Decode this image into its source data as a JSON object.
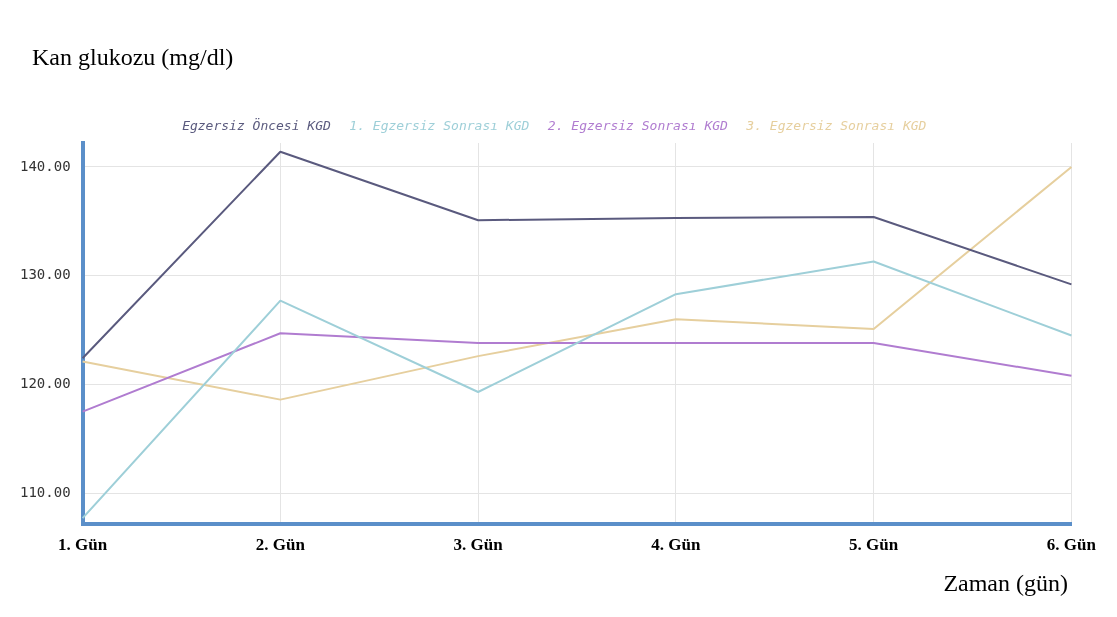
{
  "chart_data": {
    "type": "line",
    "xlabel": "Zaman (gün)",
    "ylabel": "Kan glukozu (mg/dl)",
    "categories": [
      "1. Gün",
      "2. Gün",
      "3. Gün",
      "4. Gün",
      "5. Gün",
      "6. Gün"
    ],
    "series": [
      {
        "name": "Egzersiz Öncesi KGD",
        "color": "#5a5a7e",
        "values": [
          122.4,
          141.4,
          135.1,
          135.3,
          135.4,
          129.2
        ]
      },
      {
        "name": "1. Egzersiz Sonrası KGD",
        "color": "#9ecfd8",
        "values": [
          107.7,
          127.7,
          119.3,
          128.3,
          131.3,
          124.5
        ]
      },
      {
        "name": "2. Egzersiz Sonrası KGD",
        "color": "#b07cd0",
        "values": [
          117.5,
          124.7,
          123.8,
          123.8,
          123.8,
          120.8
        ]
      },
      {
        "name": "3. Egzersiz Sonrası KGD",
        "color": "#e6cf9e",
        "values": [
          122.1,
          118.6,
          122.6,
          126.0,
          125.1,
          140.0
        ]
      }
    ],
    "ylim": [
      107.2,
      142.2
    ],
    "yticks": [
      {
        "value": 110,
        "label": "110.00"
      },
      {
        "value": 120,
        "label": "120.00"
      },
      {
        "value": 130,
        "label": "130.00"
      },
      {
        "value": 140,
        "label": "140.00"
      }
    ],
    "grid": true,
    "legend": "top",
    "marker": "none",
    "line_style": "solid"
  }
}
